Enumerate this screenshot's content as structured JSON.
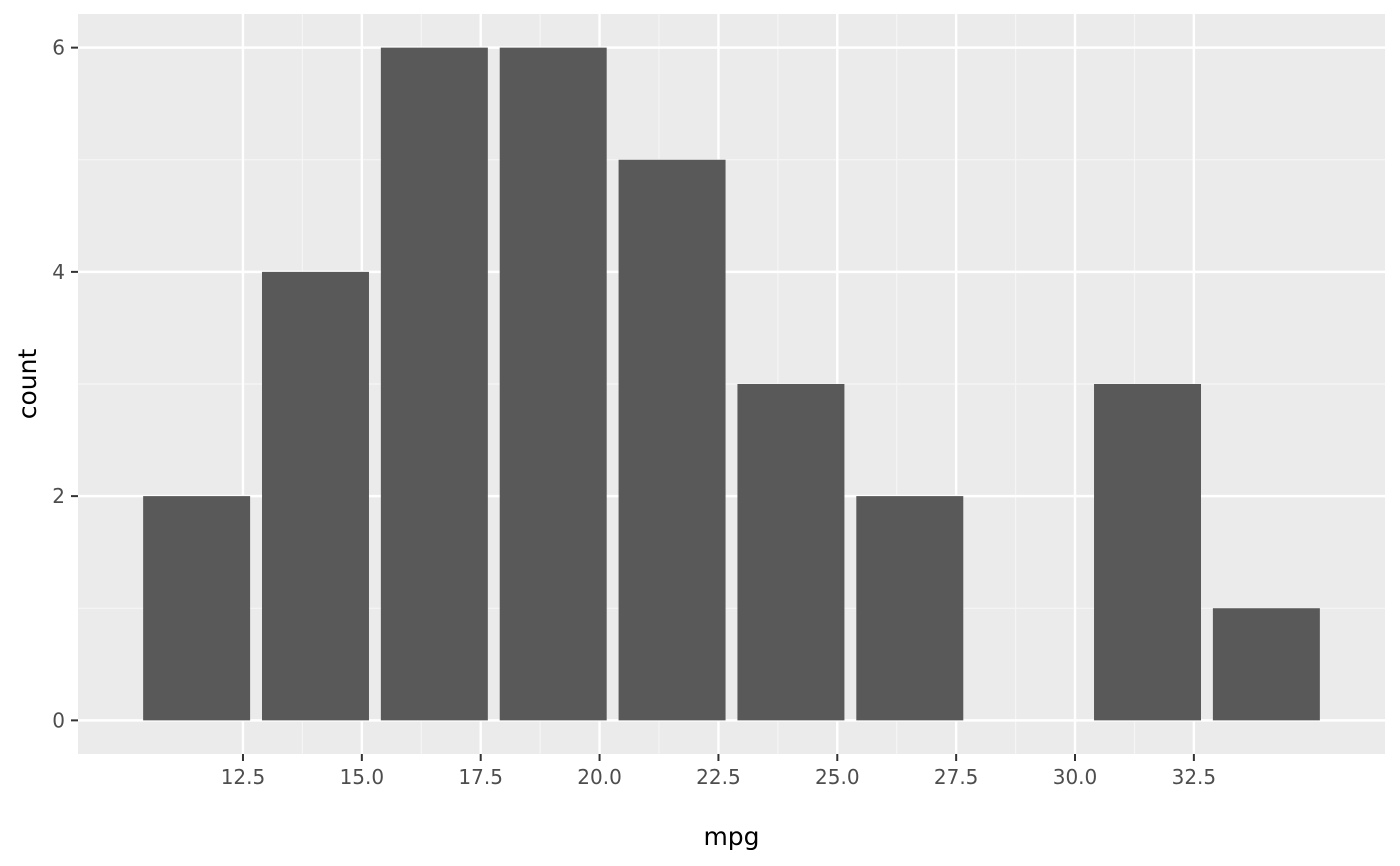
{
  "chart_data": {
    "type": "bar",
    "title": "",
    "xlabel": "mpg",
    "ylabel": "count",
    "bins": [
      {
        "x0": 10.4,
        "x1": 12.65,
        "count": 2
      },
      {
        "x0": 12.9,
        "x1": 15.15,
        "count": 4
      },
      {
        "x0": 15.4,
        "x1": 17.65,
        "count": 6
      },
      {
        "x0": 17.9,
        "x1": 20.15,
        "count": 6
      },
      {
        "x0": 20.4,
        "x1": 22.65,
        "count": 5
      },
      {
        "x0": 22.9,
        "x1": 25.15,
        "count": 3
      },
      {
        "x0": 25.4,
        "x1": 27.65,
        "count": 2
      },
      {
        "x0": 27.9,
        "x1": 30.15,
        "count": 0
      },
      {
        "x0": 30.4,
        "x1": 32.65,
        "count": 3
      },
      {
        "x0": 32.9,
        "x1": 35.15,
        "count": 1
      }
    ],
    "xlim": [
      9.03,
      36.52
    ],
    "ylim": [
      -0.3,
      6.3
    ],
    "x_ticks": [
      12.5,
      15.0,
      17.5,
      20.0,
      22.5,
      25.0,
      27.5,
      30.0,
      32.5
    ],
    "x_tick_labels": [
      "12.5",
      "15.0",
      "17.5",
      "20.0",
      "22.5",
      "25.0",
      "27.5",
      "30.0",
      "32.5"
    ],
    "y_ticks": [
      0,
      2,
      4,
      6
    ],
    "y_tick_labels": [
      "0",
      "2",
      "4",
      "6"
    ],
    "grid": true,
    "legend": "none",
    "colors": {
      "bar": "#595959",
      "panel_background": "#ebebeb",
      "grid_major": "#ffffff",
      "grid_minor": "#f5f5f5",
      "tick_text": "#4d4d4d",
      "axis_tick": "#333333"
    }
  }
}
